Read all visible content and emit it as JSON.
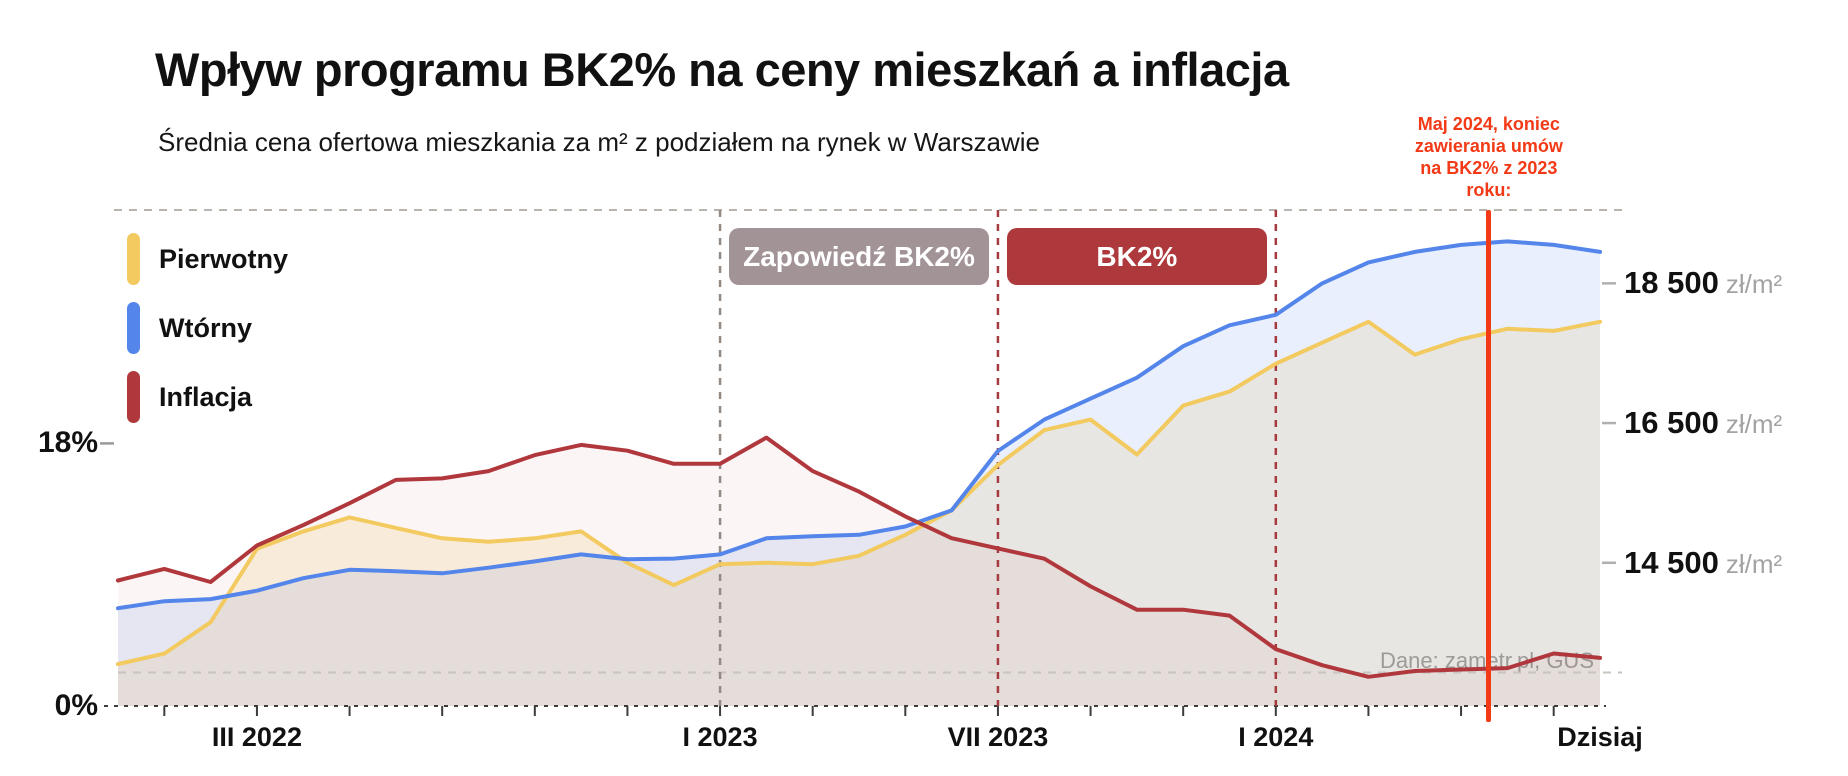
{
  "title": "Wpływ programu BK2% na ceny mieszkań a inflacja",
  "subtitle": "Średnia cena ofertowa mieszkania za m² z podziałem na rynek w Warszawie",
  "source": "Dane: zametr.pl, GUS",
  "legend": {
    "items": [
      {
        "label": "Pierwotny",
        "color": "#f2ca5f"
      },
      {
        "label": "Wtórny",
        "color": "#5485ea"
      },
      {
        "label": "Inflacja",
        "color": "#b0383d"
      }
    ]
  },
  "chart_data": {
    "type": "line",
    "x_unit": "month",
    "months_total": 33,
    "x_range_note": "XII 2021 to VIII 2024, monthly",
    "x_tick_labels": [
      {
        "index": 3,
        "label": "III 2022"
      },
      {
        "index": 13,
        "label": "I 2023"
      },
      {
        "index": 19,
        "label": "VII 2023"
      },
      {
        "index": 25,
        "label": "I 2024"
      },
      {
        "index": 32,
        "label": "Dzisiaj"
      }
    ],
    "price_axis": {
      "min": 12450,
      "max": 19550,
      "unit": "zł/m²",
      "side": "right",
      "ticks": [
        {
          "value": 18500,
          "label": "18 500"
        },
        {
          "value": 16500,
          "label": "16 500"
        },
        {
          "value": 14500,
          "label": "14 500"
        }
      ]
    },
    "inflation_axis": {
      "min": 0,
      "max": 34,
      "side": "left",
      "ticks": [
        {
          "value": 18,
          "label": "18%"
        },
        {
          "value": 0,
          "label": "0%"
        }
      ]
    },
    "series": [
      {
        "name": "Pierwotny",
        "axis": "price",
        "color": "#f2ca5f",
        "fill": "rgba(242,202,95,0.18)",
        "values": [
          13050,
          13200,
          13650,
          14700,
          14950,
          15150,
          15000,
          14850,
          14800,
          14850,
          14950,
          14500,
          14180,
          14480,
          14500,
          14480,
          14600,
          14900,
          15250,
          15900,
          16400,
          16550,
          16050,
          16750,
          16950,
          17350,
          17650,
          17950,
          17480,
          17700,
          17850,
          17820,
          17950
        ]
      },
      {
        "name": "Wtórny",
        "axis": "price",
        "color": "#5485ea",
        "fill": "rgba(84,133,234,0.13)",
        "values": [
          13850,
          13950,
          13980,
          14100,
          14280,
          14400,
          14380,
          14350,
          14430,
          14520,
          14620,
          14550,
          14560,
          14620,
          14850,
          14880,
          14900,
          15020,
          15250,
          16100,
          16550,
          16850,
          17150,
          17600,
          17900,
          18050,
          18500,
          18800,
          18950,
          19050,
          19100,
          19050,
          18950
        ]
      },
      {
        "name": "Inflacja",
        "axis": "inflation",
        "color": "#b0383d",
        "fill": "rgba(176,56,61,0.05)",
        "values": [
          8.6,
          9.4,
          8.5,
          11.0,
          12.4,
          13.9,
          15.5,
          15.6,
          16.1,
          17.2,
          17.9,
          17.5,
          16.6,
          16.6,
          18.4,
          16.1,
          14.7,
          13.0,
          11.5,
          10.8,
          10.1,
          8.2,
          6.6,
          6.6,
          6.2,
          3.9,
          2.8,
          2.0,
          2.4,
          2.5,
          2.6,
          3.6,
          3.3
        ]
      }
    ],
    "markers": [
      {
        "index": 13,
        "color": "#948a84",
        "style": "dashed"
      },
      {
        "index": 19,
        "color": "#a63a3e",
        "style": "dashed"
      },
      {
        "index": 25,
        "color": "#a63a3e",
        "style": "dashed"
      }
    ],
    "periods": [
      {
        "label": "Zapowiedź BK2%",
        "from": 13,
        "to": 19,
        "bg": "#a29397"
      },
      {
        "label": "BK2%",
        "from": 19,
        "to": 25,
        "bg": "#ae393c"
      }
    ],
    "event": {
      "index": 29.6,
      "color": "#f23a17",
      "label": "Maj 2024, koniec\nzawierania umów\nna BK2% z 2023\nroku:"
    },
    "reference_line": {
      "axis": "inflation",
      "value": 2.3,
      "style": "dashed",
      "color": "#c9c4be"
    },
    "layout": {
      "grid": "off",
      "top_border": "dashed",
      "bottom_axis": "dashed",
      "legend_position": "top-left"
    }
  }
}
